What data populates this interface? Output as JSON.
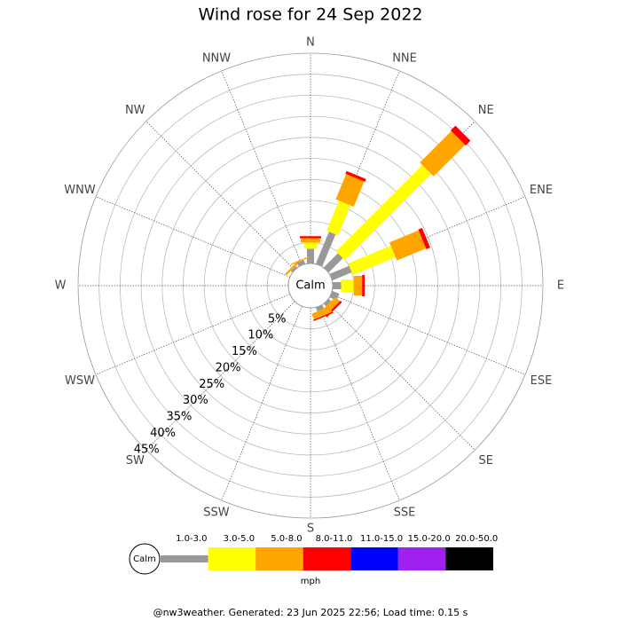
{
  "chart_data": {
    "type": "windrose",
    "title": "Wind rose for 24 Sep 2022",
    "categories": [
      "N",
      "NNE",
      "NE",
      "ENE",
      "E",
      "ESE",
      "SE",
      "SSE",
      "S",
      "SSW",
      "SW",
      "WSW",
      "W",
      "WNW",
      "NW",
      "NNW"
    ],
    "calm_label": "Calm",
    "ylim": [
      0,
      50
    ],
    "yticks": [
      {
        "value": 5,
        "label": "5%"
      },
      {
        "value": 10,
        "label": "10%"
      },
      {
        "value": 15,
        "label": "15%"
      },
      {
        "value": 20,
        "label": "20%"
      },
      {
        "value": 25,
        "label": "25%"
      },
      {
        "value": 30,
        "label": "30%"
      },
      {
        "value": 35,
        "label": "35%"
      },
      {
        "value": 40,
        "label": "40%"
      },
      {
        "value": 45,
        "label": "45%"
      }
    ],
    "series": [
      {
        "name": "1.0-3.0",
        "color": "#999999",
        "values": [
          3.5,
          8.3,
          4.8,
          5,
          2,
          1.8,
          0.8,
          1,
          0,
          0,
          0,
          0,
          0,
          0,
          0.5,
          1
        ]
      },
      {
        "name": "3.0-5.0",
        "color": "#ffff00",
        "values": [
          1.5,
          7.7,
          29,
          11,
          3,
          0,
          0,
          0,
          0,
          0,
          0,
          0,
          0,
          0,
          0,
          0
        ]
      },
      {
        "name": "5.0-8.0",
        "color": "#ffa500",
        "values": [
          1,
          6.5,
          10.6,
          7.5,
          2,
          0,
          1.5,
          1.5,
          0,
          0,
          0,
          0,
          0,
          0,
          0.5,
          0.3
        ]
      },
      {
        "name": "8.0-11.0",
        "color": "#ff0000",
        "values": [
          0.5,
          0.7,
          1.6,
          1,
          0.6,
          0,
          0.5,
          0.3,
          0,
          0,
          0,
          0,
          0,
          0,
          0,
          0
        ]
      },
      {
        "name": "11.0-15.0",
        "color": "#0000ff",
        "values": [
          0,
          0,
          0,
          0,
          0,
          0,
          0,
          0,
          0,
          0,
          0,
          0,
          0,
          0,
          0,
          0
        ]
      },
      {
        "name": "15.0-20.0",
        "color": "#a020f0",
        "values": [
          0,
          0,
          0,
          0,
          0,
          0,
          0,
          0,
          0,
          0,
          0,
          0,
          0,
          0,
          0,
          0
        ]
      },
      {
        "name": "20.0-50.0",
        "color": "#000000",
        "values": [
          0,
          0,
          0,
          0,
          0,
          0,
          0,
          0,
          0,
          0,
          0,
          0,
          0,
          0,
          0,
          0
        ]
      }
    ],
    "unit_label": "mph",
    "footer": "@nw3weather. Generated: 23 Jun 2025 22:56; Load time: 0.15 s"
  }
}
